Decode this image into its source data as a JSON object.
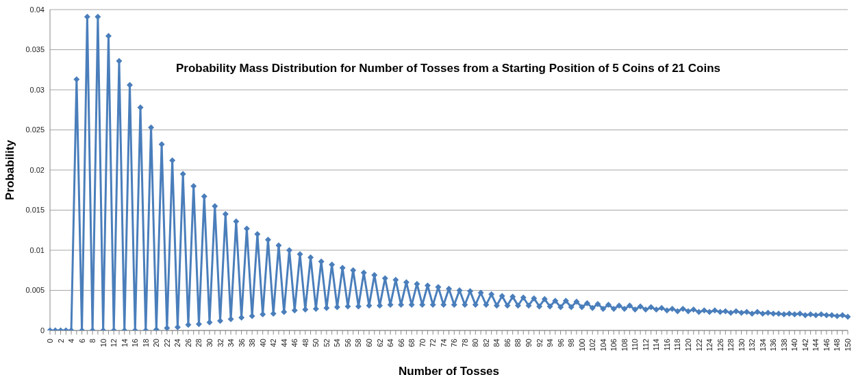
{
  "chart_data": {
    "type": "line",
    "title": "Probability Mass Distribution for Number of Tosses from a Starting Position of 5 Coins of 21 Coins",
    "xlabel": "Number of Tosses",
    "ylabel": "Probability",
    "categories": [
      "0",
      null,
      "2",
      null,
      "4",
      null,
      "6",
      null,
      "8",
      null,
      "10",
      null,
      "12",
      null,
      "14",
      null,
      "16",
      null,
      "18",
      null,
      "20",
      null,
      "22",
      null,
      "24",
      null,
      "26",
      null,
      "28",
      null,
      "30",
      null,
      "32",
      null,
      "34",
      null,
      "36",
      null,
      "38",
      null,
      "40",
      null,
      "42",
      null,
      "44",
      null,
      "46",
      null,
      "48",
      null,
      "50",
      null,
      "52",
      null,
      "54",
      null,
      "56",
      null,
      "58",
      null,
      "60",
      null,
      "62",
      null,
      "64",
      null,
      "66",
      null,
      "68",
      null,
      "70",
      null,
      "72",
      null,
      "74",
      null,
      "76",
      null,
      "78",
      null,
      "80",
      null,
      "82",
      null,
      "84",
      null,
      "86",
      null,
      "88",
      null,
      "90",
      null,
      "92",
      null,
      "94",
      null,
      "96",
      null,
      "98",
      null,
      "100",
      null,
      "102",
      null,
      "104",
      null,
      "106",
      null,
      "108",
      null,
      "110",
      null,
      "112",
      null,
      "114",
      null,
      "116",
      null,
      "118",
      null,
      "120",
      null,
      "122",
      null,
      "124",
      null,
      "126",
      null,
      "128",
      null,
      "130",
      null,
      "132",
      null,
      "134",
      null,
      "136",
      null,
      "138",
      null,
      "140",
      null,
      "142",
      null,
      "144",
      null,
      "146",
      null,
      "148",
      null,
      "150"
    ],
    "series": [
      {
        "color": "#4a7ebb",
        "values": [
          0,
          0,
          0,
          0,
          0,
          0.0313,
          0,
          0.0391,
          0,
          0.0391,
          0,
          0.0367,
          0,
          0.0336,
          0,
          0.0306,
          0,
          0.0278,
          0,
          0.0253,
          0.0001,
          0.0232,
          0.0003,
          0.0212,
          0.0004,
          0.0195,
          0.0007,
          0.018,
          0.0008,
          0.0167,
          0.001,
          0.0155,
          0.0012,
          0.0145,
          0.0014,
          0.0136,
          0.0016,
          0.0127,
          0.0018,
          0.012,
          0.002,
          0.0113,
          0.0021,
          0.0106,
          0.0023,
          0.01,
          0.0025,
          0.0095,
          0.0026,
          0.0091,
          0.0027,
          0.0086,
          0.0028,
          0.0082,
          0.0029,
          0.0078,
          0.003,
          0.0075,
          0.003,
          0.0072,
          0.0031,
          0.0069,
          0.0031,
          0.0065,
          0.0032,
          0.0063,
          0.0032,
          0.006,
          0.0032,
          0.0058,
          0.0032,
          0.0056,
          0.0032,
          0.0054,
          0.0032,
          0.0052,
          0.0032,
          0.005,
          0.0032,
          0.0049,
          0.0032,
          0.0047,
          0.0032,
          0.0045,
          0.0031,
          0.0043,
          0.0031,
          0.0042,
          0.0031,
          0.0041,
          0.0031,
          0.004,
          0.003,
          0.0039,
          0.003,
          0.0037,
          0.0029,
          0.0037,
          0.0029,
          0.0036,
          0.0029,
          0.0034,
          0.0028,
          0.0033,
          0.0027,
          0.0032,
          0.0027,
          0.0031,
          0.0027,
          0.0031,
          0.0026,
          0.003,
          0.0026,
          0.0029,
          0.0026,
          0.0028,
          0.0025,
          0.0027,
          0.0024,
          0.0027,
          0.0024,
          0.0026,
          0.0023,
          0.0025,
          0.0023,
          0.0025,
          0.0023,
          0.0024,
          0.0022,
          0.0024,
          0.0022,
          0.0023,
          0.0021,
          0.0023,
          0.0021,
          0.0022,
          0.0021,
          0.0021,
          0.002,
          0.0021,
          0.002,
          0.0021,
          0.0019,
          0.002,
          0.0019,
          0.002,
          0.0019,
          0.0019,
          0.0018,
          0.0019,
          0.0017
        ]
      }
    ],
    "ylim": [
      0,
      0.04
    ],
    "yticks": [
      0,
      0.005,
      0.01,
      0.015,
      0.02,
      0.025,
      0.03,
      0.035,
      0.04
    ],
    "grid": "y",
    "marker": "diamond",
    "line_style": "solid"
  }
}
